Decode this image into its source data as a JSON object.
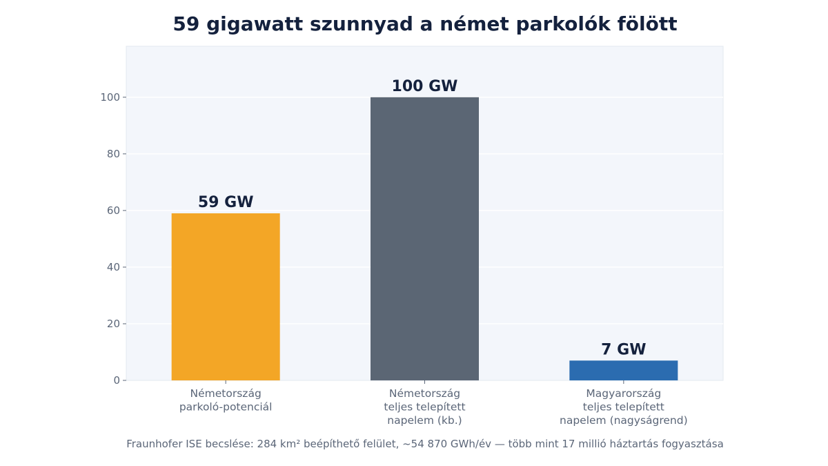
{
  "chart_data": {
    "type": "bar",
    "title": "59 gigawatt szunnyad a német parkolók fölött",
    "categories": [
      [
        "Németország",
        "parkoló-potenciál"
      ],
      [
        "Németország",
        "teljes telepített",
        "napelem (kb.)"
      ],
      [
        "Magyarország",
        "teljes telepített",
        "napelem (nagyságrend)"
      ]
    ],
    "values": [
      59,
      100,
      7
    ],
    "data_labels": [
      "59 GW",
      "100 GW",
      "7 GW"
    ],
    "colors": [
      "#f3a626",
      "#5b6674",
      "#2b6cb0"
    ],
    "ylim": [
      0,
      118
    ],
    "yticks": [
      0,
      20,
      40,
      60,
      80,
      100
    ],
    "xlabel": "",
    "ylabel": "",
    "grid": true,
    "footnote": "Fraunhofer ISE becslése: 284 km² beépíthető felület, ~54 870 GWh/év — több mint 17 millió háztartás fogyasztása"
  }
}
